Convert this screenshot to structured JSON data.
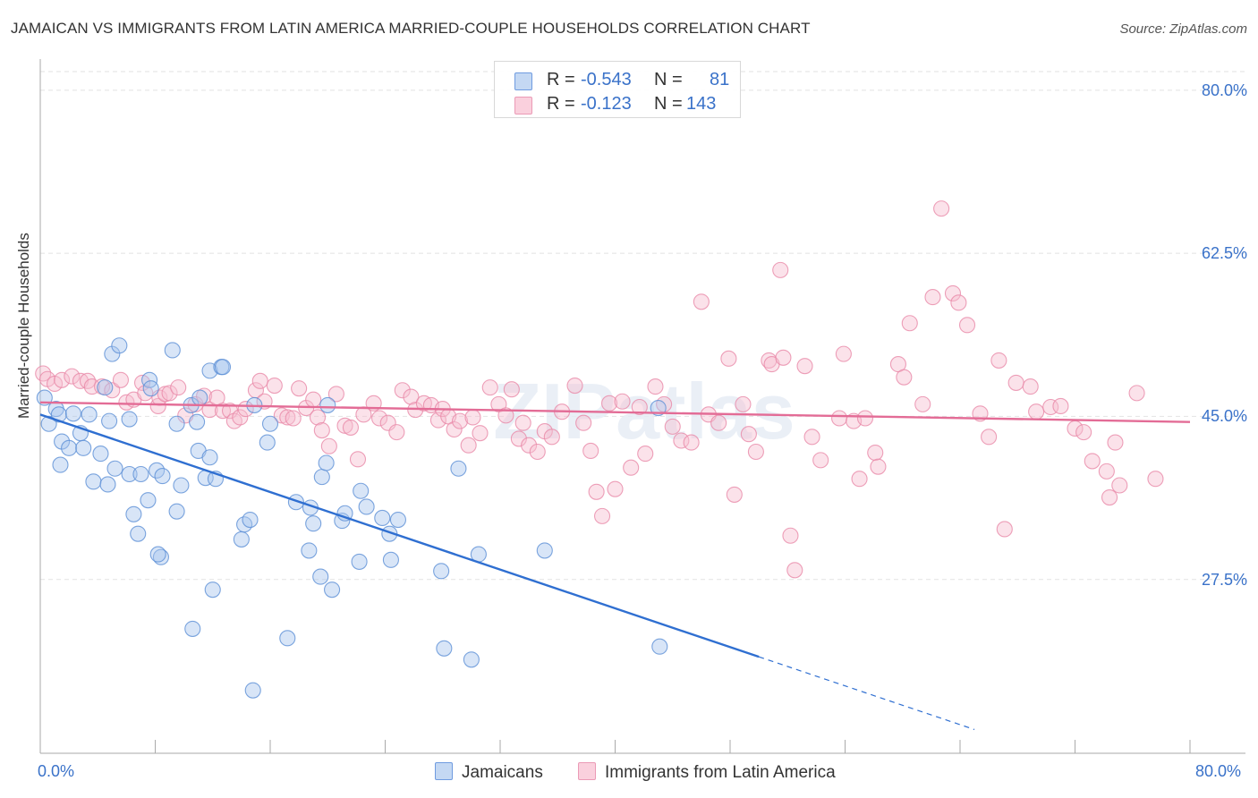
{
  "title": "JAMAICAN VS IMMIGRANTS FROM LATIN AMERICA MARRIED-COUPLE HOUSEHOLDS CORRELATION CHART",
  "source": "Source: ZipAtlas.com",
  "watermark": "ZIPatlas",
  "legend": {
    "rows": [
      {
        "r_label": "R =",
        "r_value": "-0.543",
        "n_label": "N =",
        "n_value": "81",
        "color": "#a9c6ee",
        "stroke": "#5b8fd6"
      },
      {
        "r_label": "R =",
        "r_value": "-0.123",
        "n_label": "N =",
        "n_value": "143",
        "color": "#f6bfd0",
        "stroke": "#e888a8"
      }
    ]
  },
  "bottom_legend": [
    {
      "label": "Jamaicans"
    },
    {
      "label": "Immigrants from Latin America"
    }
  ],
  "chart_data": {
    "type": "scatter",
    "title": "JAMAICAN VS IMMIGRANTS FROM LATIN AMERICA MARRIED-COUPLE HOUSEHOLDS CORRELATION CHART",
    "xlabel": "",
    "ylabel": "Married-couple Households",
    "xlim": [
      0,
      80
    ],
    "ylim": [
      10,
      82
    ],
    "x_tick_labels": [
      "0.0%",
      "80.0%"
    ],
    "y_ticks": [
      27.5,
      45.0,
      62.5,
      80.0
    ],
    "y_tick_labels": [
      "27.5%",
      "45.0%",
      "62.5%",
      "80.0%"
    ],
    "grid": true,
    "series": [
      {
        "name": "Jamaicans",
        "color": "#a9c6ee",
        "stroke": "#5b8fd6",
        "line_color": "#2f6fd1",
        "trend": {
          "x0": 0,
          "y0": 45.2,
          "x1": 50,
          "y1": 19.2,
          "dash_to_x": 65,
          "dash_to_y": 11.4
        },
        "points": [
          [
            0.3,
            47
          ],
          [
            0.6,
            44.2
          ],
          [
            1.1,
            45.8
          ],
          [
            1.3,
            45.2
          ],
          [
            1.5,
            42.3
          ],
          [
            1.4,
            39.8
          ],
          [
            2.0,
            41.6
          ],
          [
            2.3,
            45.3
          ],
          [
            2.8,
            43.2
          ],
          [
            3.4,
            45.2
          ],
          [
            3.0,
            41.6
          ],
          [
            4.2,
            41.0
          ],
          [
            3.7,
            38.0
          ],
          [
            4.7,
            37.7
          ],
          [
            4.8,
            44.5
          ],
          [
            5.2,
            39.4
          ],
          [
            4.5,
            48.1
          ],
          [
            5.0,
            51.7
          ],
          [
            5.5,
            52.6
          ],
          [
            6.2,
            38.8
          ],
          [
            6.5,
            34.5
          ],
          [
            6.8,
            32.4
          ],
          [
            7.0,
            38.8
          ],
          [
            7.5,
            36.0
          ],
          [
            8.1,
            39.2
          ],
          [
            7.6,
            48.9
          ],
          [
            7.7,
            48.0
          ],
          [
            8.5,
            38.6
          ],
          [
            8.4,
            29.9
          ],
          [
            8.2,
            30.2
          ],
          [
            9.5,
            34.8
          ],
          [
            9.8,
            37.6
          ],
          [
            10.5,
            46.2
          ],
          [
            11.1,
            47.0
          ],
          [
            11.0,
            41.3
          ],
          [
            11.8,
            40.6
          ],
          [
            9.5,
            44.2
          ],
          [
            9.2,
            52.1
          ],
          [
            10.9,
            44.4
          ],
          [
            11.5,
            38.4
          ],
          [
            12.2,
            38.3
          ],
          [
            12.0,
            26.4
          ],
          [
            10.6,
            22.2
          ],
          [
            11.8,
            49.9
          ],
          [
            12.6,
            50.3
          ],
          [
            12.7,
            50.3
          ],
          [
            14.0,
            31.8
          ],
          [
            14.2,
            33.4
          ],
          [
            14.9,
            46.2
          ],
          [
            15.8,
            42.2
          ],
          [
            16.0,
            44.2
          ],
          [
            17.8,
            35.8
          ],
          [
            17.2,
            21.2
          ],
          [
            18.8,
            35.2
          ],
          [
            19.6,
            38.5
          ],
          [
            19.0,
            33.5
          ],
          [
            18.7,
            30.6
          ],
          [
            19.5,
            27.8
          ],
          [
            19.9,
            40.0
          ],
          [
            21.0,
            33.8
          ],
          [
            20.3,
            26.4
          ],
          [
            20.0,
            46.2
          ],
          [
            21.2,
            34.6
          ],
          [
            22.2,
            29.4
          ],
          [
            22.7,
            35.3
          ],
          [
            23.8,
            34.1
          ],
          [
            22.3,
            37.0
          ],
          [
            24.3,
            32.4
          ],
          [
            24.4,
            29.6
          ],
          [
            24.9,
            33.9
          ],
          [
            27.9,
            28.4
          ],
          [
            28.1,
            20.1
          ],
          [
            29.1,
            39.4
          ],
          [
            30.0,
            18.9
          ],
          [
            30.5,
            30.2
          ],
          [
            35.1,
            30.6
          ],
          [
            43.0,
            45.9
          ],
          [
            43.1,
            20.3
          ],
          [
            14.8,
            15.6
          ],
          [
            14.6,
            33.9
          ],
          [
            6.2,
            44.7
          ]
        ]
      },
      {
        "name": "Immigrants from Latin America",
        "color": "#f6bfd0",
        "stroke": "#e888a8",
        "line_color": "#e36c96",
        "trend": {
          "x0": 0,
          "y0": 46.5,
          "x1": 80,
          "y1": 44.4
        },
        "points": [
          [
            0.2,
            49.6
          ],
          [
            0.5,
            49.0
          ],
          [
            1.0,
            48.5
          ],
          [
            1.5,
            48.9
          ],
          [
            2.2,
            49.3
          ],
          [
            2.8,
            48.8
          ],
          [
            3.3,
            48.8
          ],
          [
            3.6,
            48.2
          ],
          [
            4.3,
            48.2
          ],
          [
            5.0,
            47.8
          ],
          [
            5.6,
            48.9
          ],
          [
            6.0,
            46.5
          ],
          [
            6.5,
            46.8
          ],
          [
            7.1,
            48.6
          ],
          [
            7.3,
            47.5
          ],
          [
            8.2,
            46.1
          ],
          [
            8.3,
            47.0
          ],
          [
            8.7,
            47.4
          ],
          [
            9.0,
            47.5
          ],
          [
            9.6,
            48.1
          ],
          [
            10.1,
            45.1
          ],
          [
            10.8,
            46.3
          ],
          [
            11.4,
            47.2
          ],
          [
            11.8,
            45.7
          ],
          [
            12.3,
            47.0
          ],
          [
            12.7,
            45.6
          ],
          [
            13.2,
            45.6
          ],
          [
            13.5,
            44.5
          ],
          [
            13.9,
            44.9
          ],
          [
            14.3,
            45.8
          ],
          [
            15.0,
            47.8
          ],
          [
            15.3,
            48.8
          ],
          [
            15.6,
            46.6
          ],
          [
            16.3,
            48.3
          ],
          [
            16.8,
            45.1
          ],
          [
            17.2,
            44.9
          ],
          [
            17.6,
            44.8
          ],
          [
            18.0,
            48.0
          ],
          [
            18.5,
            45.9
          ],
          [
            19.0,
            46.8
          ],
          [
            19.3,
            44.9
          ],
          [
            19.6,
            43.5
          ],
          [
            20.1,
            41.8
          ],
          [
            20.6,
            47.4
          ],
          [
            21.2,
            44.0
          ],
          [
            21.6,
            43.8
          ],
          [
            22.1,
            40.4
          ],
          [
            22.5,
            45.2
          ],
          [
            23.2,
            46.4
          ],
          [
            23.6,
            44.8
          ],
          [
            24.2,
            44.3
          ],
          [
            24.8,
            43.3
          ],
          [
            25.2,
            47.8
          ],
          [
            25.8,
            47.1
          ],
          [
            26.1,
            45.7
          ],
          [
            26.7,
            46.4
          ],
          [
            27.2,
            46.2
          ],
          [
            27.7,
            44.6
          ],
          [
            28.0,
            45.8
          ],
          [
            28.4,
            45.0
          ],
          [
            28.8,
            43.6
          ],
          [
            29.2,
            44.5
          ],
          [
            29.8,
            41.9
          ],
          [
            30.1,
            44.9
          ],
          [
            30.6,
            43.2
          ],
          [
            31.3,
            48.1
          ],
          [
            31.9,
            46.3
          ],
          [
            32.4,
            45.1
          ],
          [
            32.8,
            47.9
          ],
          [
            33.3,
            42.6
          ],
          [
            33.6,
            44.3
          ],
          [
            34.0,
            41.9
          ],
          [
            34.6,
            41.2
          ],
          [
            35.1,
            43.4
          ],
          [
            35.6,
            42.8
          ],
          [
            36.3,
            45.5
          ],
          [
            37.2,
            48.3
          ],
          [
            37.8,
            44.3
          ],
          [
            38.3,
            41.3
          ],
          [
            38.7,
            36.9
          ],
          [
            39.1,
            34.3
          ],
          [
            39.6,
            46.4
          ],
          [
            40.0,
            37.2
          ],
          [
            40.5,
            46.6
          ],
          [
            41.1,
            39.5
          ],
          [
            41.7,
            46.0
          ],
          [
            42.1,
            41.0
          ],
          [
            42.8,
            48.2
          ],
          [
            43.4,
            46.3
          ],
          [
            44.0,
            43.9
          ],
          [
            44.6,
            42.4
          ],
          [
            45.3,
            42.2
          ],
          [
            46.0,
            57.3
          ],
          [
            46.5,
            45.2
          ],
          [
            47.2,
            44.3
          ],
          [
            47.9,
            51.2
          ],
          [
            48.3,
            36.6
          ],
          [
            48.9,
            46.3
          ],
          [
            49.3,
            43.1
          ],
          [
            49.8,
            41.2
          ],
          [
            50.7,
            51.0
          ],
          [
            50.9,
            50.6
          ],
          [
            51.5,
            60.7
          ],
          [
            51.7,
            51.3
          ],
          [
            52.2,
            32.2
          ],
          [
            52.5,
            28.5
          ],
          [
            53.2,
            50.4
          ],
          [
            53.7,
            42.8
          ],
          [
            54.3,
            40.3
          ],
          [
            55.6,
            44.8
          ],
          [
            55.9,
            51.7
          ],
          [
            56.6,
            44.5
          ],
          [
            57.0,
            38.3
          ],
          [
            57.4,
            44.8
          ],
          [
            58.1,
            41.1
          ],
          [
            58.3,
            39.6
          ],
          [
            59.7,
            50.6
          ],
          [
            60.1,
            49.2
          ],
          [
            60.5,
            55.0
          ],
          [
            61.4,
            46.3
          ],
          [
            62.1,
            57.8
          ],
          [
            63.5,
            58.2
          ],
          [
            63.9,
            57.2
          ],
          [
            64.5,
            54.8
          ],
          [
            65.4,
            45.3
          ],
          [
            66.0,
            42.8
          ],
          [
            66.7,
            51.0
          ],
          [
            67.1,
            32.9
          ],
          [
            67.9,
            48.6
          ],
          [
            68.9,
            48.2
          ],
          [
            69.3,
            45.5
          ],
          [
            70.3,
            46.0
          ],
          [
            71.0,
            46.1
          ],
          [
            72.0,
            43.7
          ],
          [
            72.6,
            43.3
          ],
          [
            73.2,
            40.2
          ],
          [
            74.2,
            39.1
          ],
          [
            74.4,
            36.3
          ],
          [
            74.8,
            42.2
          ],
          [
            75.1,
            37.6
          ],
          [
            76.3,
            47.5
          ],
          [
            77.6,
            38.3
          ],
          [
            62.7,
            67.3
          ]
        ]
      }
    ]
  }
}
